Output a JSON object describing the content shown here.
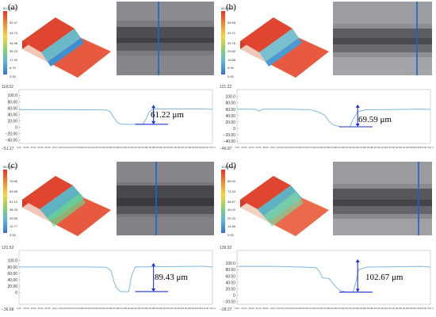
{
  "panels": [
    {
      "id": "a",
      "label": "(a)",
      "scale_top": "61.22μm",
      "scale_ticks": [
        "52.47",
        "43.73",
        "34.98",
        "26.23",
        "17.49",
        "8.74",
        "0.00"
      ],
      "depth": "61.22 μm",
      "depth_value": 61.22,
      "y_top": "118.02",
      "y_bottom": "−51.17",
      "y_ticks": [
        "100.0",
        "80.00",
        "60.00",
        "40.00",
        "20.00",
        "0",
        "−20.00",
        "−40.00"
      ],
      "profile": [
        [
          0,
          55
        ],
        [
          100,
          55
        ],
        [
          190,
          54
        ],
        [
          198,
          48
        ],
        [
          206,
          30
        ],
        [
          214,
          14
        ],
        [
          222,
          9
        ],
        [
          268,
          9
        ],
        [
          275,
          23
        ],
        [
          283,
          48
        ],
        [
          291,
          57
        ],
        [
          400,
          57
        ],
        [
          420,
          56
        ]
      ]
    },
    {
      "id": "b",
      "label": "(b)",
      "scale_top": "69.59μm",
      "scale_ticks": [
        "59.65",
        "49.71",
        "39.76",
        "29.82",
        "19.88",
        "9.94",
        "0.00"
      ],
      "depth": "69.59 μm",
      "depth_value": 69.59,
      "y_top": "121.22",
      "y_bottom": "−46.97",
      "y_ticks": [
        "100.0",
        "80.00",
        "60.00",
        "40.00",
        "20.00",
        "0",
        "−20.00",
        "−40.00"
      ],
      "profile": [
        [
          0,
          60
        ],
        [
          40,
          60
        ],
        [
          48,
          54
        ],
        [
          56,
          60
        ],
        [
          120,
          60
        ],
        [
          160,
          58
        ],
        [
          175,
          52
        ],
        [
          190,
          42
        ],
        [
          200,
          22
        ],
        [
          210,
          10
        ],
        [
          225,
          5
        ],
        [
          245,
          5
        ],
        [
          252,
          28
        ],
        [
          262,
          52
        ],
        [
          278,
          58
        ],
        [
          400,
          60
        ],
        [
          420,
          59
        ]
      ]
    },
    {
      "id": "c",
      "label": "(c)",
      "scale_top": "89.43μm",
      "scale_ticks": [
        "76.66",
        "63.88",
        "51.10",
        "38.33",
        "25.55",
        "12.77",
        "0.00"
      ],
      "depth": "89.43 μm",
      "depth_value": 89.43,
      "y_top": "131.52",
      "y_bottom": "−36.68",
      "y_ticks": [
        "100.0",
        "80.00",
        "60.00",
        "40.00",
        "20.00",
        "0"
      ],
      "profile": [
        [
          0,
          80
        ],
        [
          150,
          80
        ],
        [
          190,
          79
        ],
        [
          200,
          68
        ],
        [
          206,
          35
        ],
        [
          212,
          14
        ],
        [
          220,
          3
        ],
        [
          238,
          3
        ],
        [
          244,
          50
        ],
        [
          252,
          80
        ],
        [
          400,
          82
        ],
        [
          420,
          80
        ]
      ]
    },
    {
      "id": "d",
      "label": "(d)",
      "scale_top": "102.67μm",
      "scale_ticks": [
        "88.00",
        "73.34",
        "58.67",
        "44.00",
        "29.33",
        "14.66",
        "0.00"
      ],
      "depth": "102.67 μm",
      "depth_value": 102.67,
      "y_top": "139.92",
      "y_bottom": "−28.27",
      "y_ticks": [
        "100.0",
        "80.00",
        "60.00",
        "40.00",
        "20.00",
        "0",
        "−20.00"
      ],
      "profile": [
        [
          0,
          90
        ],
        [
          80,
          90
        ],
        [
          140,
          88
        ],
        [
          172,
          86
        ],
        [
          180,
          72
        ],
        [
          185,
          55
        ],
        [
          200,
          52
        ],
        [
          212,
          30
        ],
        [
          222,
          16
        ],
        [
          236,
          10
        ],
        [
          252,
          10
        ],
        [
          258,
          40
        ],
        [
          264,
          80
        ],
        [
          282,
          88
        ],
        [
          400,
          90
        ],
        [
          420,
          88
        ]
      ]
    }
  ],
  "x_ticks": [
    "0.00",
    "20.00",
    "40.00",
    "60.00",
    "80.00",
    "100.0",
    "120.00",
    "140.00",
    "160.00",
    "180.00",
    "200.00",
    "220.00",
    "240.00",
    "260.00",
    "280.00",
    "300.00",
    "320.00",
    "340.00",
    "360.00",
    "380.00",
    "400.00",
    "420.00",
    "440.00",
    "460.00",
    "480.00",
    "500.00",
    "520.00",
    "541.4"
  ],
  "colors": {
    "profile_line": "#7fb8dd",
    "depth_arrow": "#1f2fd4",
    "scan_line": "#1a67c9"
  }
}
